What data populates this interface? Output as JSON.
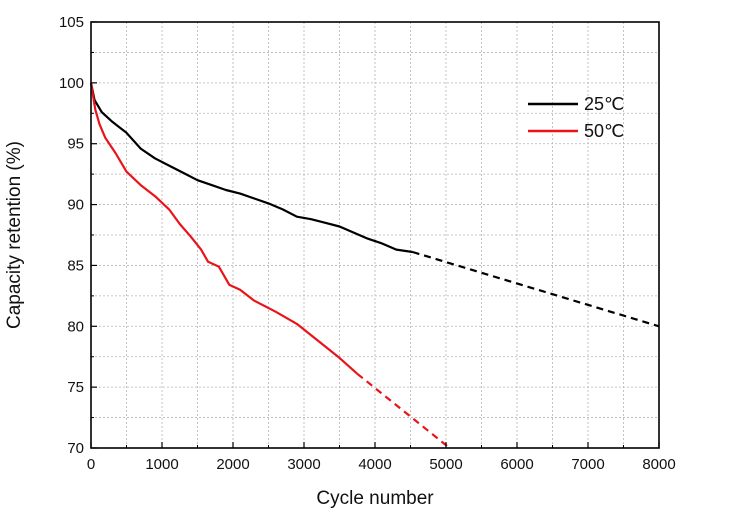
{
  "chart_data": {
    "type": "line",
    "xlabel": "Cycle number",
    "ylabel": "Capacity retention (%)",
    "xlim": [
      0,
      8000
    ],
    "ylim": [
      70,
      105
    ],
    "xticks": [
      "0",
      "1000",
      "2000",
      "3000",
      "4000",
      "5000",
      "6000",
      "7000",
      "8000"
    ],
    "yticks": [
      "70",
      "75",
      "80",
      "85",
      "90",
      "95",
      "100",
      "105"
    ],
    "grid": true,
    "legend_position": "top-right",
    "series": [
      {
        "name": "25℃",
        "color": "#000000",
        "measured": [
          [
            0,
            100
          ],
          [
            50,
            98.6
          ],
          [
            150,
            97.6
          ],
          [
            300,
            96.8
          ],
          [
            500,
            95.9
          ],
          [
            700,
            94.6
          ],
          [
            900,
            93.8
          ],
          [
            1100,
            93.2
          ],
          [
            1300,
            92.6
          ],
          [
            1500,
            92.0
          ],
          [
            1700,
            91.6
          ],
          [
            1900,
            91.2
          ],
          [
            2100,
            90.9
          ],
          [
            2300,
            90.5
          ],
          [
            2500,
            90.1
          ],
          [
            2700,
            89.6
          ],
          [
            2900,
            89.0
          ],
          [
            3100,
            88.8
          ],
          [
            3300,
            88.5
          ],
          [
            3500,
            88.2
          ],
          [
            3700,
            87.7
          ],
          [
            3900,
            87.2
          ],
          [
            4100,
            86.8
          ],
          [
            4300,
            86.3
          ],
          [
            4530,
            86.1
          ]
        ],
        "extrapolated": [
          [
            4530,
            86.1
          ],
          [
            8000,
            80.0
          ]
        ]
      },
      {
        "name": "50℃",
        "color": "#e8141a",
        "measured": [
          [
            0,
            100
          ],
          [
            60,
            97.8
          ],
          [
            120,
            96.6
          ],
          [
            200,
            95.5
          ],
          [
            350,
            94.2
          ],
          [
            500,
            92.7
          ],
          [
            700,
            91.6
          ],
          [
            900,
            90.7
          ],
          [
            1100,
            89.6
          ],
          [
            1250,
            88.4
          ],
          [
            1400,
            87.4
          ],
          [
            1550,
            86.3
          ],
          [
            1650,
            85.3
          ],
          [
            1800,
            84.9
          ],
          [
            1950,
            83.4
          ],
          [
            2100,
            83.0
          ],
          [
            2300,
            82.1
          ],
          [
            2600,
            81.2
          ],
          [
            2900,
            80.2
          ],
          [
            3200,
            78.8
          ],
          [
            3500,
            77.4
          ],
          [
            3750,
            76.1
          ]
        ],
        "extrapolated": [
          [
            3750,
            76.1
          ],
          [
            5050,
            70.0
          ]
        ]
      }
    ]
  }
}
